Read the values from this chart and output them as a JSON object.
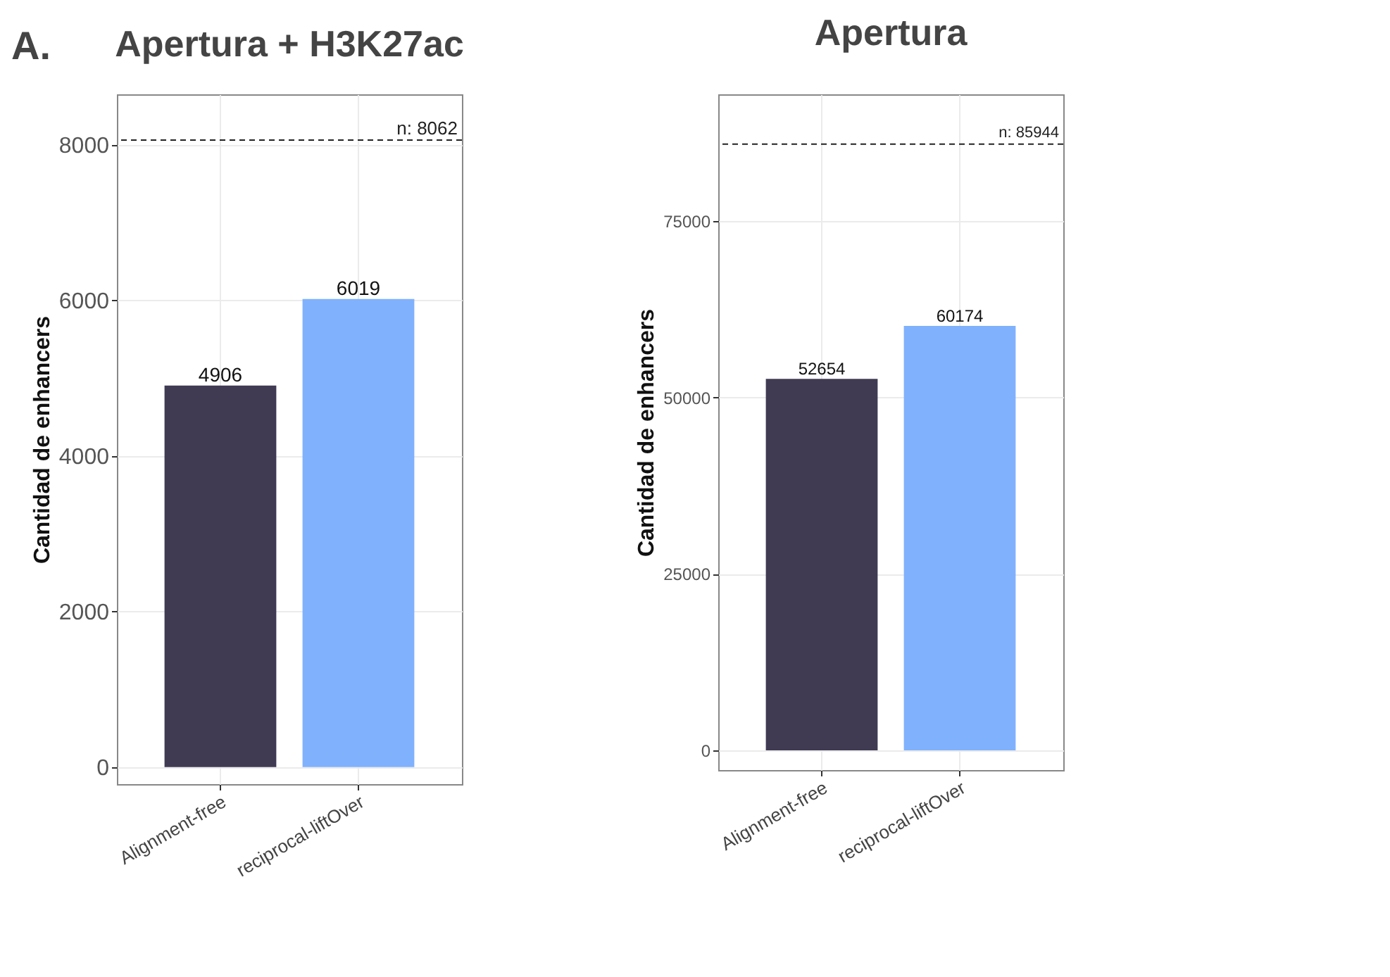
{
  "chart_data": [
    {
      "type": "bar",
      "title": "Apertura + H3K27ac",
      "ylabel": "Cantidad de enhancers",
      "annotations": [
        "A."
      ],
      "categories": [
        "Alignment-free",
        "reciprocal-liftOver"
      ],
      "values": [
        4906,
        6019
      ],
      "colors": [
        "#403a53",
        "#80b1fd"
      ],
      "ylim": [
        -220,
        8650
      ],
      "yticks": [
        0,
        2000,
        4000,
        6000,
        8000
      ],
      "grid": true,
      "data_labels": true,
      "ref_lines": [
        {
          "axis": "y",
          "value": 8062,
          "label": "n: 8062",
          "line_style": "dashed"
        }
      ]
    },
    {
      "type": "bar",
      "title": "Apertura",
      "ylabel": "Cantidad de enhancers",
      "categories": [
        "Alignment-free",
        "reciprocal-liftOver"
      ],
      "values": [
        52654,
        60174
      ],
      "colors": [
        "#403a53",
        "#80b1fd"
      ],
      "ylim": [
        -2800,
        93000
      ],
      "yticks": [
        0,
        25000,
        50000,
        75000
      ],
      "grid": true,
      "data_labels": true,
      "ref_lines": [
        {
          "axis": "y",
          "value": 85944,
          "label": "n: 85944",
          "line_style": "dashed"
        }
      ]
    }
  ]
}
